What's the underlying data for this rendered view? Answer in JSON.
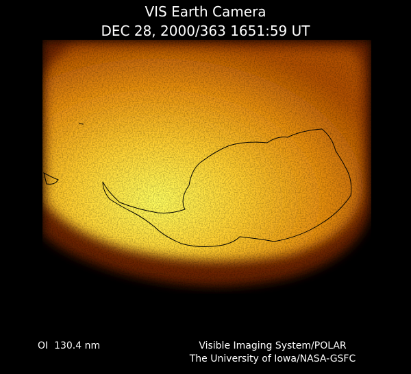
{
  "header": {
    "title": "VIS Earth Camera",
    "timestamp": "DEC 28, 2000/363 1651:59 UT"
  },
  "footer": {
    "wavelength": "OI  130.4 nm",
    "instrument": "Visible Imaging System/POLAR",
    "institution": "The University of Iowa/NASA-GSFC"
  }
}
